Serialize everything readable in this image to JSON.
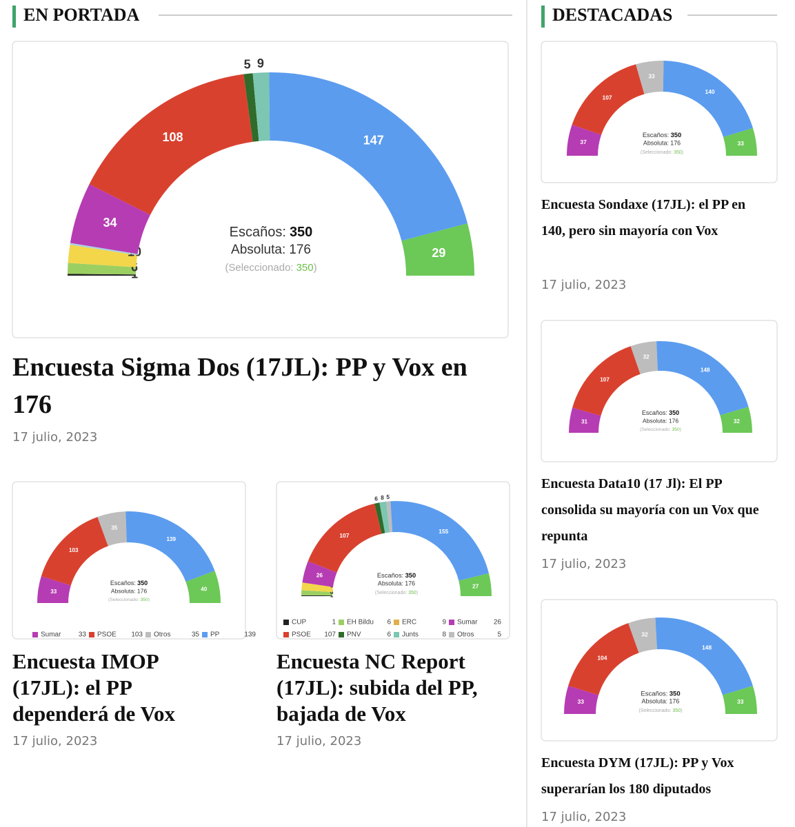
{
  "portada": {
    "heading": "EN PORTADA",
    "featured": {
      "title": "Encuesta Sigma Dos (17JL): PP y Vox en 176",
      "date": "17 julio, 2023",
      "chart": {
        "type": "hemicycle",
        "segments": [
          {
            "value": 1,
            "color": "#222222"
          },
          {
            "value": 6,
            "color": "#9ccf62"
          },
          {
            "value": 10,
            "color": "#f3d64a"
          },
          {
            "value": 1,
            "color": "#a9cfe3"
          },
          {
            "value": 34,
            "color": "#b63cb3"
          },
          {
            "value": 108,
            "color": "#d9412f"
          },
          {
            "value": 5,
            "color": "#2f6b2a"
          },
          {
            "value": 9,
            "color": "#7cc6b2"
          },
          {
            "value": 147,
            "color": "#5b9cef"
          },
          {
            "value": 29,
            "color": "#6cc857"
          }
        ],
        "seats_label": "Escaños:",
        "seats": 350,
        "majority_label": "Absoluta:",
        "majority": 176,
        "selected_label": "(Seleccionado:",
        "selected": 350,
        "selected_end": ")"
      }
    },
    "articles": [
      {
        "title": "Encuesta IMOP (17JL): el PP dependerá de Vox",
        "date": "17 julio, 2023",
        "chart": {
          "type": "hemicycle",
          "segments": [
            {
              "value": 33,
              "color": "#b63cb3"
            },
            {
              "value": 103,
              "color": "#d9412f"
            },
            {
              "value": 35,
              "color": "#bdbdbd"
            },
            {
              "value": 139,
              "color": "#5b9cef"
            },
            {
              "value": 40,
              "color": "#6cc857"
            }
          ],
          "seats_label": "Escaños:",
          "seats": 350,
          "majority_label": "Absoluta:",
          "majority": 176,
          "selected_label": "(Seleccionado:",
          "selected": 350,
          "selected_end": ")",
          "legend": [
            {
              "name": "Sumar",
              "value": 33,
              "color": "#b63cb3"
            },
            {
              "name": "PSOE",
              "value": 103,
              "color": "#d9412f"
            },
            {
              "name": "Otros",
              "value": 35,
              "color": "#bdbdbd"
            },
            {
              "name": "PP",
              "value": 139,
              "color": "#5b9cef"
            }
          ]
        }
      },
      {
        "title": "Encuesta NC Report (17JL): subida del PP, bajada de Vox",
        "date": "17 julio, 2023",
        "chart": {
          "type": "hemicycle",
          "segments": [
            {
              "value": 1,
              "color": "#222222"
            },
            {
              "value": 6,
              "color": "#9ccf62"
            },
            {
              "value": 9,
              "color": "#f3d64a"
            },
            {
              "value": 26,
              "color": "#b63cb3"
            },
            {
              "value": 107,
              "color": "#d9412f"
            },
            {
              "value": 6,
              "color": "#2f6b2a"
            },
            {
              "value": 8,
              "color": "#7cc6b2"
            },
            {
              "value": 5,
              "color": "#bdbdbd"
            },
            {
              "value": 155,
              "color": "#5b9cef"
            },
            {
              "value": 27,
              "color": "#6cc857"
            }
          ],
          "seats_label": "Escaños:",
          "seats": 350,
          "majority_label": "Absoluta:",
          "majority": 176,
          "selected_label": "(Seleccionado:",
          "selected": 350,
          "selected_end": ")",
          "legend": [
            {
              "name": "CUP",
              "value": 1,
              "color": "#222222"
            },
            {
              "name": "EH Bildu",
              "value": 6,
              "color": "#9ccf62"
            },
            {
              "name": "ERC",
              "value": 9,
              "color": "#e0b04a"
            },
            {
              "name": "Sumar",
              "value": 26,
              "color": "#b63cb3"
            },
            {
              "name": "PSOE",
              "value": 107,
              "color": "#d9412f"
            },
            {
              "name": "PNV",
              "value": 6,
              "color": "#2f6b2a"
            },
            {
              "name": "Junts",
              "value": 8,
              "color": "#7cc6b2"
            },
            {
              "name": "Otros",
              "value": 5,
              "color": "#bdbdbd"
            }
          ]
        }
      }
    ]
  },
  "destacadas": {
    "heading": "DESTACADAS",
    "articles": [
      {
        "title": "Encuesta Sondaxe (17JL): el PP en 140, pero sin mayoría con Vox",
        "date": "17 julio, 2023",
        "chart": {
          "type": "hemicycle",
          "segments": [
            {
              "value": 37,
              "color": "#b63cb3"
            },
            {
              "value": 107,
              "color": "#d9412f"
            },
            {
              "value": 33,
              "color": "#bdbdbd"
            },
            {
              "value": 140,
              "color": "#5b9cef"
            },
            {
              "value": 33,
              "color": "#6cc857"
            }
          ],
          "seats_label": "Escaños:",
          "seats": 350,
          "majority_label": "Absoluta:",
          "majority": 176,
          "selected_label": "(Seleccionado:",
          "selected": 350,
          "selected_end": ")"
        }
      },
      {
        "title": "Encuesta Data10 (17 Jl): El PP consolida su mayoría con un Vox que repunta",
        "date": "17 julio, 2023",
        "chart": {
          "type": "hemicycle",
          "segments": [
            {
              "value": 31,
              "color": "#b63cb3"
            },
            {
              "value": 107,
              "color": "#d9412f"
            },
            {
              "value": 32,
              "color": "#bdbdbd"
            },
            {
              "value": 148,
              "color": "#5b9cef"
            },
            {
              "value": 32,
              "color": "#6cc857"
            }
          ],
          "seats_label": "Escaños:",
          "seats": 350,
          "majority_label": "Absoluta:",
          "majority": 176,
          "selected_label": "(Seleccionado:",
          "selected": 350,
          "selected_end": ")"
        }
      },
      {
        "title": "Encuesta DYM (17JL): PP y Vox superarían los 180 diputados",
        "date": "17 julio, 2023",
        "chart": {
          "type": "hemicycle",
          "segments": [
            {
              "value": 33,
              "color": "#b63cb3"
            },
            {
              "value": 104,
              "color": "#d9412f"
            },
            {
              "value": 32,
              "color": "#bdbdbd"
            },
            {
              "value": 148,
              "color": "#5b9cef"
            },
            {
              "value": 33,
              "color": "#6cc857"
            }
          ],
          "seats_label": "Escaños:",
          "seats": 350,
          "majority_label": "Absoluta:",
          "majority": 176,
          "selected_label": "(Seleccionado:",
          "selected": 350,
          "selected_end": ")"
        }
      }
    ]
  }
}
